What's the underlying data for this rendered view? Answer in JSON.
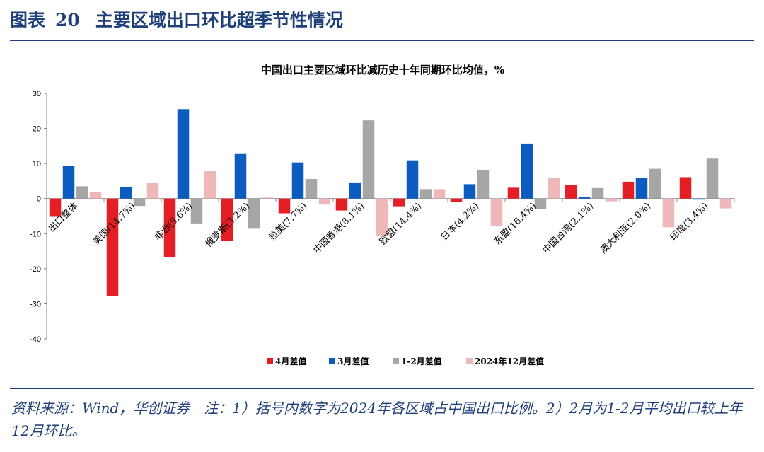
{
  "heading": {
    "figure_no": "图表",
    "number": "20",
    "title": "主要区域出口环比超季节性情况"
  },
  "footnote": "资料来源：Wind，华创证券　注：1）括号内数字为2024年各区域占中国出口比例。2）2月为1-2月平均出口较上年12月环比。",
  "colors": {
    "heading": "#1f3f7a",
    "s1": "#e31e24",
    "s2": "#0c5bbf",
    "s3": "#a6a6a6",
    "s4": "#eeb8b8"
  },
  "chart_data": {
    "type": "bar",
    "title": "中国出口主要区域环比减历史十年同期环比均值，%",
    "categories": [
      "出口整体",
      "美国(14.7%)",
      "非洲(5.6%)",
      "俄罗斯(3.2%)",
      "拉美(7.7%)",
      "中国香港(8.1%)",
      "欧盟(14.4%)",
      "日本(4.2%)",
      "东盟(16.4%)",
      "中国台湾(2.1%)",
      "澳大利亚(2.0%)",
      "印度(3.4%)"
    ],
    "series": [
      {
        "name": "4月差值",
        "color": "#e31e24",
        "values": [
          -5.2,
          -27.8,
          -16.7,
          -12.0,
          -4.2,
          -3.4,
          -2.2,
          -1.0,
          3.1,
          3.9,
          4.8,
          6.1
        ]
      },
      {
        "name": "3月差值",
        "color": "#0c5bbf",
        "values": [
          9.4,
          3.3,
          25.5,
          12.7,
          10.3,
          4.4,
          10.9,
          4.1,
          15.7,
          0.4,
          5.8,
          -0.3
        ]
      },
      {
        "name": "1-2月差值",
        "color": "#a6a6a6",
        "values": [
          3.5,
          -2.1,
          -7.1,
          -8.6,
          5.6,
          22.3,
          2.7,
          8.1,
          -2.9,
          3.0,
          8.5,
          11.4
        ]
      },
      {
        "name": "2024年12月差值",
        "color": "#eeb8b8",
        "values": [
          1.9,
          4.4,
          7.8,
          0.3,
          -1.7,
          -10.7,
          2.7,
          -7.8,
          5.8,
          -0.8,
          -8.2,
          -2.8
        ]
      }
    ],
    "ylim": [
      -40,
      30
    ],
    "yticks": [
      30,
      20,
      10,
      0,
      -10,
      -20,
      -30,
      -40
    ],
    "grid": false,
    "legend_position": "bottom"
  }
}
